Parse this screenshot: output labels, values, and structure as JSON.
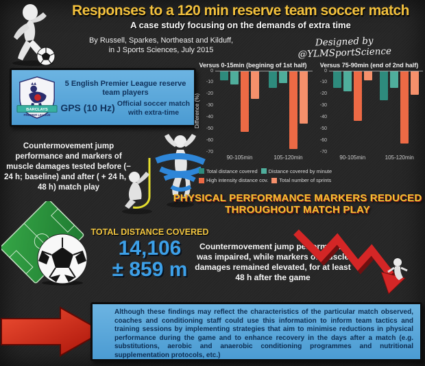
{
  "header": {
    "title": "Responses to a 120 min reserve team soccer match",
    "subtitle": "A case study focusing on the demands of extra time",
    "citation_line1": "By Russell, Sparkes, Northeast and Kilduff,",
    "citation_line2": "in J Sports Sciences, July 2015",
    "designed_by": "Designed by @YLMSportScience"
  },
  "study_box": {
    "badge_line1": "BARCLAYS",
    "badge_line2": "PREMIER LEAGUE",
    "players": "5 English Premier League reserve team players",
    "gps": "GPS (10 Hz)",
    "match_type": "Official soccer match with extra-time"
  },
  "method_text": "Countermovement jump performance and markers of muscle damages tested before (− 24 h; baseline) and after ( + 24 h, + 48 h) match play",
  "key_finding": "PHYSICAL PERFORMANCE MARKERS REDUCED THROUGHOUT MATCH PLAY",
  "distance": {
    "label": "TOTAL DISTANCE COVERED",
    "value_line1": "14,106",
    "value_line2": "± 859 m"
  },
  "jump_text": "Countermovement jump performance was impaired, while markers of muscle damages remained elevated, for at least 48 h after the game",
  "conclusion": "Although these findings may reflect the characteristics of the particular match observed, coaches and conditioning staff could use this information to inform team tactics and training sessions by implementing strategies that aim to minimise reductions in physical performance during the game and to enhance recovery in the days after a match (e.g. substitutions, aerobic and anaerobic conditioning programmes and nutritional supplementation protocols, etc.)",
  "colors": {
    "title_yellow": "#f3c13d",
    "box_blue": "#58a8da",
    "number_blue": "#3da0e8",
    "arrow_red": "#d7281d",
    "bar_teal_dark": "#2e8b7d",
    "bar_teal_light": "#4fae9c",
    "bar_orange_dark": "#ed6a45",
    "bar_orange_light": "#f5906b"
  },
  "chart_data": [
    {
      "type": "bar",
      "title": "Versus 0-15min (begining of 1st half)",
      "categories": [
        "90-105min",
        "105-120min"
      ],
      "series": [
        {
          "name": "Total distance covered",
          "color": "#2e8b7d",
          "values": [
            -8,
            -14
          ]
        },
        {
          "name": "Distance covered by minute",
          "color": "#4fae9c",
          "values": [
            -11,
            -10
          ]
        },
        {
          "name": "High intensity distance cov.",
          "color": "#ed6a45",
          "values": [
            -52,
            -67
          ]
        },
        {
          "name": "Total number of sprints",
          "color": "#f5906b",
          "values": [
            -24,
            -45
          ]
        }
      ],
      "xlabel": "",
      "ylabel": "Difference (%)",
      "ylim": [
        -70,
        0
      ],
      "yticks": [
        0,
        -10,
        -20,
        -30,
        -40,
        -50,
        -60,
        -70
      ],
      "grid": false,
      "legend_position": "below-left"
    },
    {
      "type": "bar",
      "title": "Versus 75-90min (end of 2nd half)",
      "categories": [
        "90-105min",
        "105-120min"
      ],
      "series": [
        {
          "name": "Total distance covered",
          "color": "#2e8b7d",
          "values": [
            -14,
            -25
          ]
        },
        {
          "name": "Distance covered by minute",
          "color": "#4fae9c",
          "values": [
            -17,
            -14
          ]
        },
        {
          "name": "High intensity distance cov.",
          "color": "#ed6a45",
          "values": [
            -43,
            -62
          ]
        },
        {
          "name": "Total number of sprints",
          "color": "#f5906b",
          "values": [
            -8,
            -20
          ]
        }
      ],
      "xlabel": "",
      "ylabel": "",
      "ylim": [
        -70,
        0
      ],
      "yticks": [
        0,
        -10,
        -20,
        -30,
        -40,
        -50,
        -60,
        -70
      ],
      "grid": false,
      "legend_position": "shared"
    }
  ],
  "illustrations": {
    "top_left": "soccer-player-kicking-ball",
    "middle_left": "jump-measure-figure",
    "middle": "spiral-jump-figure",
    "bottom_left": "soccer-field-and-ball",
    "right": "declining-red-arrow-with-falling-figure",
    "bottom": "large-red-arrow"
  }
}
